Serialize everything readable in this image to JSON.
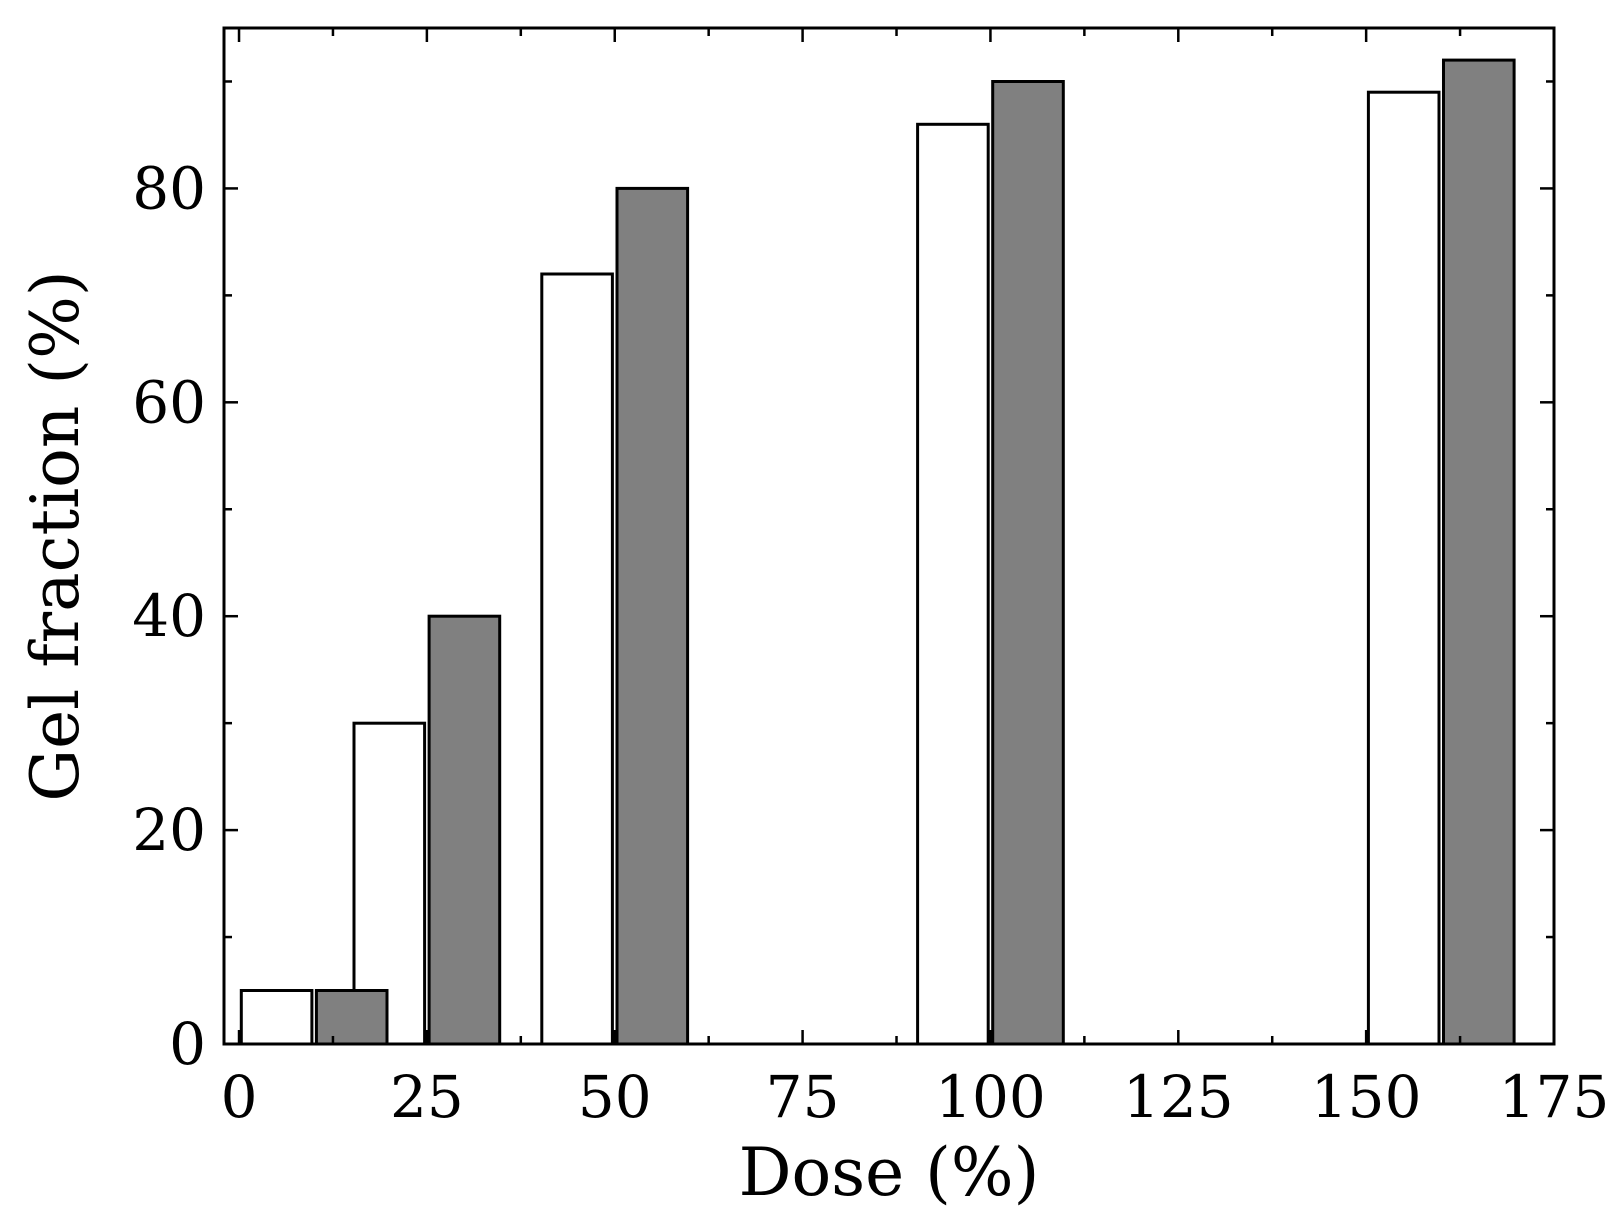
{
  "chart_data": {
    "type": "bar",
    "title": "",
    "xlabel": "Dose (%)",
    "ylabel": "Gel fraction (%)",
    "xlim": [
      -2,
      175
    ],
    "ylim": [
      0,
      95
    ],
    "xticks": [
      0,
      25,
      50,
      75,
      100,
      125,
      150,
      175
    ],
    "yticks": [
      0,
      20,
      40,
      60,
      80
    ],
    "x_minor_step": 12.5,
    "y_minor_step": 10,
    "grid": false,
    "legend": "none",
    "bar_width": 9.4,
    "series": [
      {
        "color": "#ffffff",
        "points": [
          {
            "x": 5,
            "y": 5
          },
          {
            "x": 20,
            "y": 30
          },
          {
            "x": 45,
            "y": 72
          },
          {
            "x": 95,
            "y": 86
          },
          {
            "x": 155,
            "y": 89
          }
        ]
      },
      {
        "color": "#808080",
        "points": [
          {
            "x": 15,
            "y": 5
          },
          {
            "x": 30,
            "y": 40
          },
          {
            "x": 55,
            "y": 80
          },
          {
            "x": 105,
            "y": 90
          },
          {
            "x": 165,
            "y": 92
          }
        ]
      }
    ]
  }
}
